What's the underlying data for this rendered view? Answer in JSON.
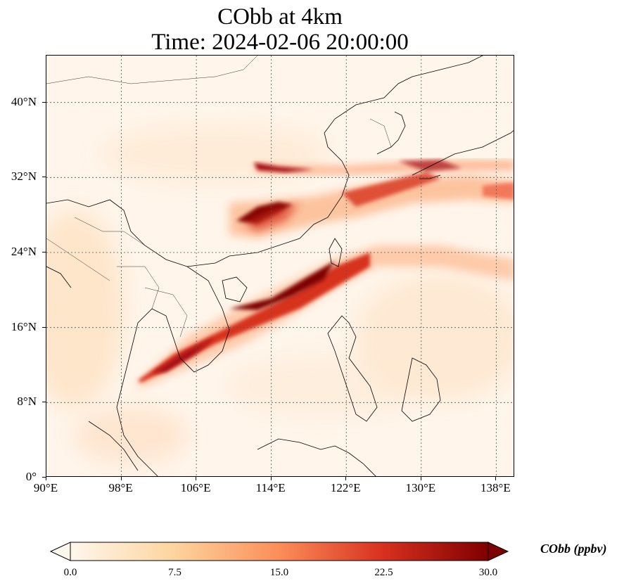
{
  "title_line1": "CObb at 4km",
  "title_line2": "Time: 2024-02-06 20:00:00",
  "map": {
    "lon_range": [
      90,
      140
    ],
    "lat_range": [
      0,
      45
    ],
    "x_ticks": [
      "90°E",
      "98°E",
      "106°E",
      "114°E",
      "122°E",
      "130°E",
      "138°E"
    ],
    "x_tick_values": [
      90,
      98,
      106,
      114,
      122,
      130,
      138
    ],
    "y_ticks": [
      "40°N",
      "32°N",
      "24°N",
      "16°N",
      "8°N",
      "0°"
    ],
    "y_tick_values": [
      40,
      32,
      24,
      16,
      8,
      0
    ],
    "gridlines": "dotted",
    "colormap": "OrRd"
  },
  "colorbar": {
    "label": "CObb (ppbv)",
    "ticks": [
      "0.0",
      "7.5",
      "15.0",
      "22.5",
      "30.0"
    ],
    "range": [
      0,
      30
    ],
    "extend": "both",
    "colors": [
      "#fff7ec",
      "#fdd49e",
      "#fc8d59",
      "#d7301f",
      "#7f0000"
    ]
  }
}
